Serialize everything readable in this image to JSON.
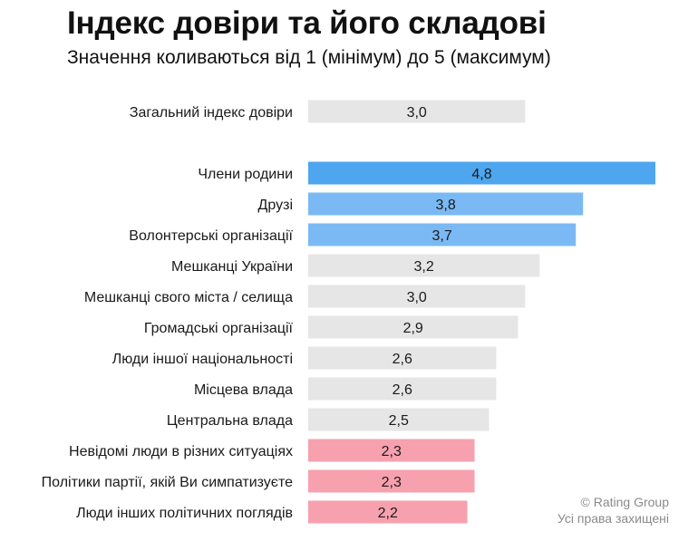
{
  "chart_data": {
    "type": "bar",
    "orientation": "horizontal",
    "title": "Індекс довіри та його складові",
    "subtitle": "Значення коливаються від 1 (мінімум) до 5 (максимум)",
    "xlim": [
      0,
      5
    ],
    "categories": [
      "Загальний індекс довіри",
      "Члени родини",
      "Друзі",
      "Волонтерські організації",
      "Мешканці України",
      "Мешканці свого міста / селища",
      "Громадські організації",
      "Люди іншої національності",
      "Місцева влада",
      "Центральна влада",
      "Невідомі люди в різних ситуаціях",
      "Політики партії, якій Ви симпатизуєте",
      "Люди інших політичних поглядів"
    ],
    "values": [
      3.0,
      4.8,
      3.8,
      3.7,
      3.2,
      3.0,
      2.9,
      2.6,
      2.6,
      2.5,
      2.3,
      2.3,
      2.2
    ],
    "value_labels": [
      "3,0",
      "4,8",
      "3,8",
      "3,7",
      "3,2",
      "3,0",
      "2,9",
      "2,6",
      "2,6",
      "2,5",
      "2,3",
      "2,3",
      "2,2"
    ],
    "bar_colors": [
      "#e6e6e6",
      "#4da6ee",
      "#7ab9f3",
      "#7ab9f3",
      "#e6e6e6",
      "#e6e6e6",
      "#e6e6e6",
      "#e6e6e6",
      "#e6e6e6",
      "#e6e6e6",
      "#f7a1ae",
      "#f7a1ae",
      "#f7a1ae"
    ]
  },
  "credit": {
    "line1": "© Rating Group",
    "line2": "Усі права захищені"
  }
}
